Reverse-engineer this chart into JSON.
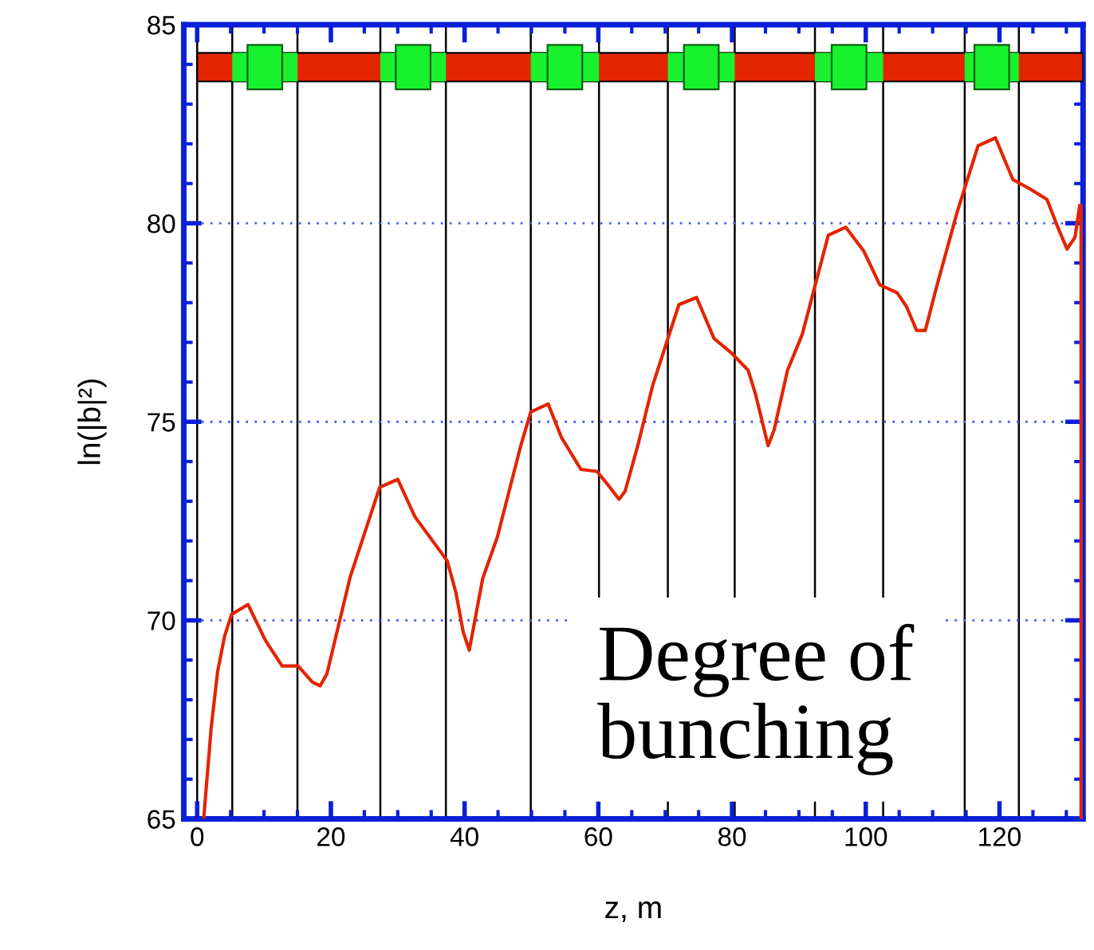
{
  "chart_data": {
    "type": "line",
    "xlabel": "z, m",
    "ylabel": "ln(|b|²)",
    "annotations": [
      "Degree of bunching"
    ],
    "xlim": [
      -2,
      132.5
    ],
    "ylim": [
      65,
      85
    ],
    "xticks": [
      0,
      20,
      40,
      60,
      80,
      100,
      120
    ],
    "yticks": [
      65,
      70,
      75,
      80,
      85
    ],
    "grid": "y",
    "marker": "none",
    "line_style": "solid",
    "ref_lines": [
      {
        "axis": "x",
        "value": 0,
        "color": "#000000"
      },
      {
        "axis": "x",
        "value": 5.25,
        "color": "#000000"
      },
      {
        "axis": "x",
        "value": 15.0,
        "color": "#000000"
      },
      {
        "axis": "x",
        "value": 27.4,
        "color": "#000000"
      },
      {
        "axis": "x",
        "value": 37.2,
        "color": "#000000"
      },
      {
        "axis": "x",
        "value": 49.9,
        "color": "#000000"
      },
      {
        "axis": "x",
        "value": 60.1,
        "color": "#000000"
      },
      {
        "axis": "x",
        "value": 70.4,
        "color": "#000000"
      },
      {
        "axis": "x",
        "value": 80.4,
        "color": "#000000"
      },
      {
        "axis": "x",
        "value": 92.4,
        "color": "#000000"
      },
      {
        "axis": "x",
        "value": 102.6,
        "color": "#000000"
      },
      {
        "axis": "x",
        "value": 114.8,
        "color": "#000000"
      },
      {
        "axis": "x",
        "value": 122.9,
        "color": "#000000"
      }
    ],
    "series": [
      {
        "color": "#e32400",
        "x": [
          1.0,
          2.1,
          3.05,
          4.1,
          5.15,
          7.6,
          10.2,
          12.7,
          15.1,
          17.2,
          18.4,
          19.4,
          22.9,
          27.3,
          30.0,
          32.6,
          37.4,
          38.7,
          39.8,
          40.7,
          42.7,
          44.9,
          48.4,
          49.9,
          52.5,
          54.5,
          57.4,
          59.8,
          61.5,
          63.1,
          64.0,
          65.9,
          68.1,
          72.05,
          74.7,
          77.3,
          79.8,
          82.4,
          83.5,
          85.4,
          86.3,
          88.3,
          90.5,
          94.4,
          97.0,
          99.7,
          102.1,
          104.7,
          106.1,
          107.6,
          108.9,
          110.6,
          113.7,
          116.8,
          119.4,
          122.0,
          124.7,
          127.1,
          128.6,
          130.1,
          131.3,
          132.0,
          132.2,
          132.2
        ],
        "values": [
          65.05,
          67.3,
          68.7,
          69.6,
          70.15,
          70.4,
          69.5,
          68.85,
          68.85,
          68.45,
          68.35,
          68.65,
          71.1,
          73.35,
          73.55,
          72.6,
          71.5,
          70.7,
          69.7,
          69.25,
          71.05,
          72.1,
          74.4,
          75.25,
          75.45,
          74.6,
          73.8,
          73.75,
          73.4,
          73.05,
          73.25,
          74.4,
          75.9,
          77.95,
          78.13,
          77.1,
          76.75,
          76.3,
          75.7,
          74.4,
          74.8,
          76.3,
          77.2,
          79.7,
          79.9,
          79.3,
          78.45,
          78.25,
          77.9,
          77.3,
          77.3,
          78.4,
          80.3,
          81.95,
          82.15,
          81.1,
          80.85,
          80.6,
          79.95,
          79.35,
          79.65,
          80.45,
          80.45,
          65.0
        ]
      }
    ]
  }
}
